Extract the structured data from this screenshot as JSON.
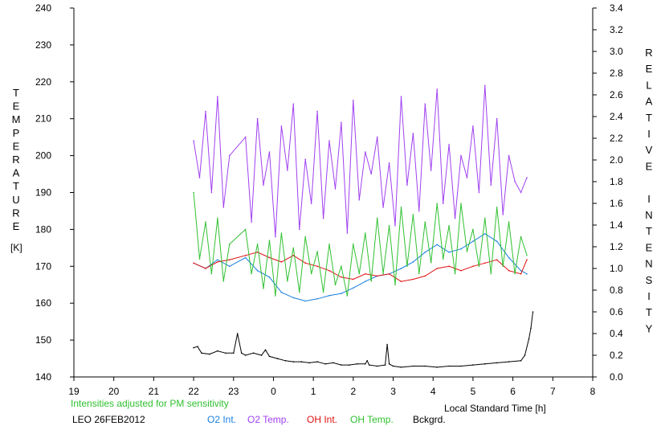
{
  "chart_data": {
    "type": "line",
    "station_date": "LEO 26FEB2012",
    "note": "Intensities adjusted for PM sensitivity",
    "xlabel": "Local Standard Time [h]",
    "x_ticks": [
      "19",
      "20",
      "21",
      "22",
      "23",
      "0",
      "1",
      "2",
      "3",
      "4",
      "5",
      "6",
      "7",
      "8"
    ],
    "xlim": [
      19,
      32
    ],
    "left_axis": {
      "label": "TEMPERATURE",
      "unit": "[K]",
      "ylim": [
        140,
        240
      ],
      "ticks": [
        "140",
        "150",
        "160",
        "170",
        "180",
        "190",
        "200",
        "210",
        "220",
        "230",
        "240"
      ]
    },
    "right_axis": {
      "label": "RELATIVE INTENSITY",
      "ylim": [
        0.0,
        3.4
      ],
      "ticks": [
        "0.0",
        "0.2",
        "0.4",
        "0.6",
        "0.8",
        "1.0",
        "1.2",
        "1.4",
        "1.6",
        "1.8",
        "2.0",
        "2.2",
        "2.4",
        "2.6",
        "2.8",
        "3.0",
        "3.2",
        "3.4"
      ]
    },
    "grid": false,
    "legend_position": "bottom",
    "series": [
      {
        "name": "O2 Int.",
        "axis": "right",
        "color": "#1a7fe0",
        "x": [
          22.0,
          22.3,
          22.6,
          22.9,
          23.3,
          23.6,
          23.9,
          24.2,
          24.5,
          24.8,
          25.1,
          25.4,
          25.7,
          26.0,
          26.3,
          26.6,
          26.9,
          27.2,
          27.5,
          27.8,
          28.1,
          28.4,
          28.7,
          29.0,
          29.3,
          29.6,
          29.9,
          30.2,
          30.35
        ],
        "y": [
          1.05,
          1.0,
          1.08,
          1.02,
          1.1,
          0.98,
          0.92,
          0.78,
          0.73,
          0.7,
          0.72,
          0.75,
          0.77,
          0.82,
          0.88,
          0.93,
          0.95,
          1.0,
          1.06,
          1.15,
          1.22,
          1.15,
          1.18,
          1.25,
          1.32,
          1.25,
          1.1,
          0.98,
          0.95
        ]
      },
      {
        "name": "O2 Temp.",
        "axis": "left",
        "color": "#a040f0",
        "x": [
          22.0,
          22.15,
          22.3,
          22.45,
          22.6,
          22.75,
          22.9,
          23.3,
          23.45,
          23.6,
          23.75,
          23.9,
          24.05,
          24.2,
          24.35,
          24.5,
          24.65,
          24.8,
          24.95,
          25.1,
          25.25,
          25.4,
          25.55,
          25.7,
          25.85,
          26.0,
          26.15,
          26.3,
          26.45,
          26.6,
          26.75,
          26.9,
          27.05,
          27.2,
          27.35,
          27.5,
          27.65,
          27.8,
          27.95,
          28.1,
          28.25,
          28.4,
          28.55,
          28.7,
          28.85,
          29.0,
          29.15,
          29.3,
          29.45,
          29.6,
          29.75,
          29.9,
          30.05,
          30.2,
          30.35
        ],
        "y": [
          204,
          194,
          212,
          190,
          216,
          186,
          200,
          205,
          182,
          210,
          192,
          201,
          178,
          208,
          196,
          214,
          180,
          199,
          187,
          212,
          183,
          204,
          191,
          209,
          179,
          215,
          188,
          201,
          195,
          205,
          186,
          198,
          181,
          216,
          192,
          206,
          185,
          214,
          196,
          218,
          187,
          203,
          183,
          200,
          194,
          208,
          190,
          219,
          192,
          210,
          184,
          200,
          193,
          190,
          194
        ]
      },
      {
        "name": "OH Int.",
        "axis": "right",
        "color": "#e01010",
        "x": [
          22.0,
          22.3,
          22.6,
          22.9,
          23.3,
          23.6,
          23.9,
          24.2,
          24.5,
          24.8,
          25.1,
          25.4,
          25.7,
          26.0,
          26.3,
          26.6,
          26.9,
          27.2,
          27.5,
          27.8,
          28.1,
          28.4,
          28.7,
          29.0,
          29.3,
          29.6,
          29.9,
          30.2,
          30.35
        ],
        "y": [
          1.05,
          1.0,
          1.06,
          1.08,
          1.12,
          1.15,
          1.1,
          1.06,
          1.12,
          1.05,
          1.02,
          0.98,
          0.92,
          0.9,
          0.95,
          0.93,
          0.95,
          0.88,
          0.9,
          0.93,
          1.0,
          1.02,
          0.98,
          1.02,
          1.05,
          1.08,
          0.98,
          0.95,
          1.08
        ]
      },
      {
        "name": "OH Temp.",
        "axis": "left",
        "color": "#30c030",
        "x": [
          22.0,
          22.15,
          22.3,
          22.45,
          22.6,
          22.75,
          22.9,
          23.3,
          23.45,
          23.6,
          23.75,
          23.9,
          24.05,
          24.2,
          24.35,
          24.5,
          24.65,
          24.8,
          24.95,
          25.1,
          25.25,
          25.4,
          25.55,
          25.7,
          25.85,
          26.0,
          26.15,
          26.3,
          26.45,
          26.6,
          26.75,
          26.9,
          27.05,
          27.2,
          27.35,
          27.5,
          27.65,
          27.8,
          27.95,
          28.1,
          28.25,
          28.4,
          28.55,
          28.7,
          28.85,
          29.0,
          29.15,
          29.3,
          29.45,
          29.6,
          29.75,
          29.9,
          30.05,
          30.2,
          30.35
        ],
        "y": [
          190,
          172,
          182,
          168,
          183,
          166,
          176,
          180,
          168,
          176,
          164,
          177,
          162,
          179,
          166,
          175,
          163,
          178,
          168,
          174,
          163,
          176,
          165,
          170,
          162,
          176,
          168,
          179,
          166,
          183,
          168,
          181,
          165,
          186,
          170,
          184,
          168,
          182,
          171,
          187,
          172,
          181,
          168,
          187,
          174,
          180,
          170,
          183,
          168,
          186,
          170,
          182,
          168,
          178,
          173
        ]
      },
      {
        "name": "Bckgrd.",
        "axis": "right",
        "color": "#000000",
        "x": [
          22.0,
          22.1,
          22.2,
          22.4,
          22.6,
          22.8,
          23.0,
          23.1,
          23.2,
          23.3,
          23.5,
          23.7,
          23.8,
          23.9,
          24.1,
          24.3,
          24.5,
          24.7,
          24.9,
          25.1,
          25.3,
          25.5,
          25.7,
          25.9,
          26.1,
          26.3,
          26.35,
          26.4,
          26.6,
          26.8,
          26.85,
          26.9,
          27.0,
          27.2,
          27.5,
          27.8,
          28.1,
          28.4,
          28.7,
          29.0,
          29.3,
          29.6,
          29.9,
          30.2,
          30.3,
          30.4,
          30.45,
          30.5
        ],
        "y": [
          0.27,
          0.28,
          0.22,
          0.21,
          0.24,
          0.22,
          0.22,
          0.4,
          0.22,
          0.2,
          0.22,
          0.2,
          0.25,
          0.19,
          0.17,
          0.15,
          0.14,
          0.14,
          0.13,
          0.14,
          0.12,
          0.13,
          0.11,
          0.11,
          0.12,
          0.12,
          0.15,
          0.11,
          0.1,
          0.11,
          0.3,
          0.12,
          0.1,
          0.09,
          0.1,
          0.1,
          0.09,
          0.1,
          0.1,
          0.11,
          0.12,
          0.13,
          0.14,
          0.15,
          0.2,
          0.35,
          0.45,
          0.6
        ]
      }
    ]
  }
}
